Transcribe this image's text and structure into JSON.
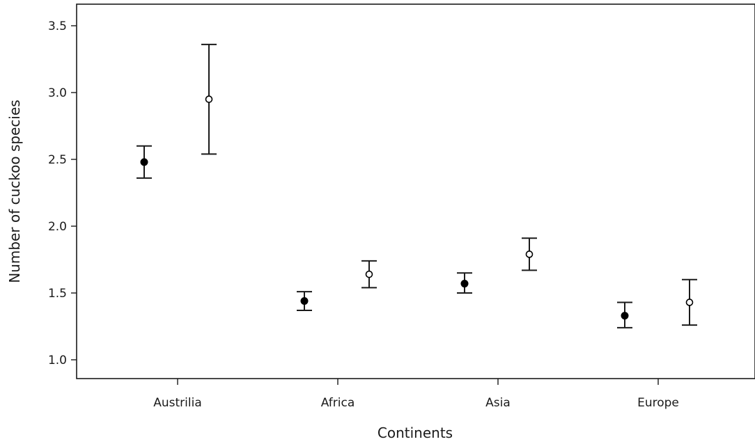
{
  "chart_data": {
    "type": "scatter",
    "title": "",
    "xlabel": "Continents",
    "ylabel": "Number of cuckoo species",
    "categories": [
      "Austrilia",
      "Africa",
      "Asia",
      "Europe"
    ],
    "ylim": [
      0.9,
      3.65
    ],
    "yticks": [
      1.0,
      1.5,
      2.0,
      2.5,
      3.0,
      3.5
    ],
    "ytick_labels": [
      "1.0",
      "1.5",
      "2.0",
      "2.5",
      "3.0",
      "3.5"
    ],
    "grid": false,
    "legend": "none",
    "series": [
      {
        "marker": "filled-circle",
        "color": "#000000",
        "points": [
          {
            "category": "Austrilia",
            "mean": 2.48,
            "lower": 2.36,
            "upper": 2.6
          },
          {
            "category": "Africa",
            "mean": 1.44,
            "lower": 1.37,
            "upper": 1.51
          },
          {
            "category": "Asia",
            "mean": 1.57,
            "lower": 1.5,
            "upper": 1.65
          },
          {
            "category": "Europe",
            "mean": 1.33,
            "lower": 1.24,
            "upper": 1.43
          }
        ]
      },
      {
        "marker": "open-circle",
        "color": "#000000",
        "points": [
          {
            "category": "Austrilia",
            "mean": 2.95,
            "lower": 2.54,
            "upper": 3.36
          },
          {
            "category": "Africa",
            "mean": 1.64,
            "lower": 1.54,
            "upper": 1.74
          },
          {
            "category": "Asia",
            "mean": 1.79,
            "lower": 1.67,
            "upper": 1.91
          },
          {
            "category": "Europe",
            "mean": 1.43,
            "lower": 1.26,
            "upper": 1.6
          }
        ]
      }
    ]
  }
}
